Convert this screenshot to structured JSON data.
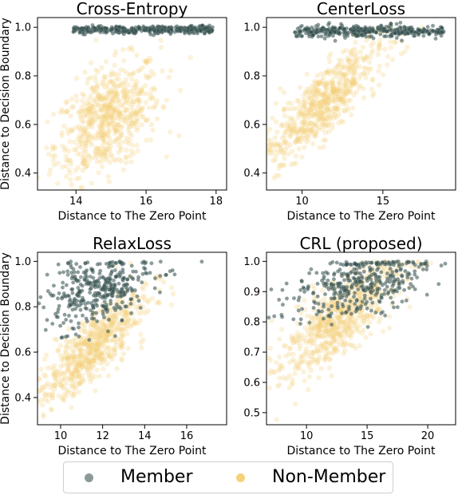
{
  "colors": {
    "member": "#2d4a48",
    "member_edge": "#8a9a98",
    "non_member": "#f5d27a",
    "axis": "#000000"
  },
  "legend": {
    "member": "Member",
    "non_member": "Non-Member"
  },
  "chart_data": [
    {
      "type": "scatter",
      "title": "Cross-Entropy",
      "xlabel": "Distance to The Zero Point",
      "ylabel": "Distance to Decision Boundary",
      "xlim": [
        12.9,
        18.3
      ],
      "ylim": [
        0.33,
        1.04
      ],
      "xticks": [
        14,
        16,
        18
      ],
      "yticks": [
        0.4,
        0.6,
        0.8,
        1.0
      ],
      "series": [
        {
          "name": "Member",
          "kind": "band",
          "x": [
            13.9,
            17.9
          ],
          "y_center": 0.99,
          "y_spread": 0.008
        },
        {
          "name": "Non-Member",
          "kind": "cloud",
          "center": [
            14.9,
            0.62
          ],
          "spread": [
            0.75,
            0.12
          ],
          "corr": 0.45
        }
      ]
    },
    {
      "type": "scatter",
      "title": "CenterLoss",
      "xlabel": "Distance to The Zero Point",
      "ylabel": "",
      "xlim": [
        7.8,
        19.5
      ],
      "ylim": [
        0.33,
        1.04
      ],
      "xticks": [
        10,
        15
      ],
      "yticks": [
        0.4,
        0.6,
        0.8,
        1.0
      ],
      "series": [
        {
          "name": "Member",
          "kind": "band",
          "x": [
            9.5,
            18.8
          ],
          "y_center": 0.985,
          "y_spread": 0.012
        },
        {
          "name": "Non-Member",
          "kind": "cloud",
          "center": [
            11.2,
            0.68
          ],
          "spread": [
            1.9,
            0.13
          ],
          "corr": 0.85
        }
      ]
    },
    {
      "type": "scatter",
      "title": "RelaxLoss",
      "xlabel": "Distance to The Zero Point",
      "ylabel": "Distance to Decision Boundary",
      "xlim": [
        8.9,
        17.9
      ],
      "ylim": [
        0.28,
        1.04
      ],
      "xticks": [
        10,
        12,
        14,
        16
      ],
      "yticks": [
        0.4,
        0.6,
        0.8,
        1.0
      ],
      "series": [
        {
          "name": "Member",
          "kind": "cloud",
          "center": [
            11.8,
            0.88
          ],
          "spread": [
            1.3,
            0.08
          ],
          "corr": 0.4
        },
        {
          "name": "Non-Member",
          "kind": "cloud",
          "center": [
            11.5,
            0.62
          ],
          "spread": [
            1.3,
            0.12
          ],
          "corr": 0.8
        }
      ]
    },
    {
      "type": "scatter",
      "title": "CRL (proposed)",
      "xlabel": "Distance to The Zero Point",
      "ylabel": "",
      "xlim": [
        6.7,
        22.3
      ],
      "ylim": [
        0.46,
        1.03
      ],
      "xticks": [
        10,
        15,
        20
      ],
      "yticks": [
        0.5,
        0.6,
        0.7,
        0.8,
        0.9,
        1.0
      ],
      "series": [
        {
          "name": "Member",
          "kind": "cloud",
          "center": [
            14.5,
            0.93
          ],
          "spread": [
            2.8,
            0.06
          ],
          "corr": 0.5
        },
        {
          "name": "Non-Member",
          "kind": "cloud",
          "center": [
            12.5,
            0.8
          ],
          "spread": [
            2.6,
            0.1
          ],
          "corr": 0.8
        }
      ]
    }
  ]
}
